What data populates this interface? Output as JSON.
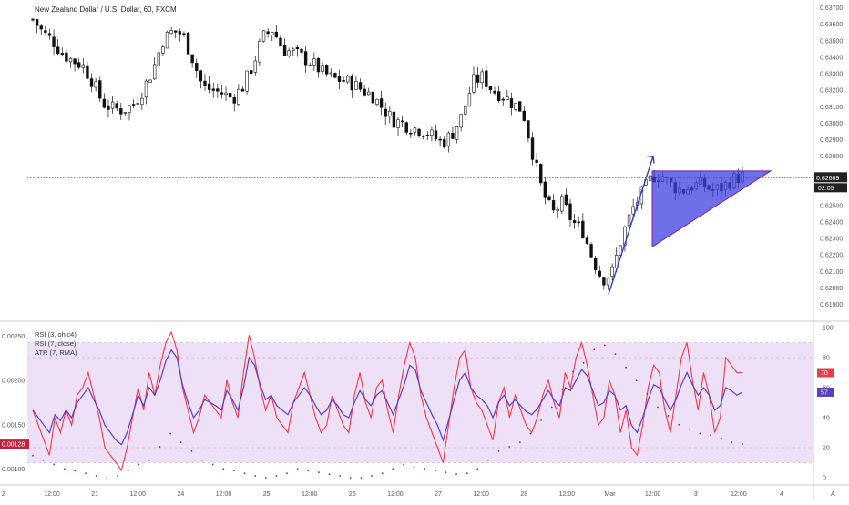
{
  "chart_data": {
    "type": "candlestick",
    "title": "New Zealand Dollar / U.S. Dollar, 60, FXCM",
    "price_axis": {
      "ticks": [
        "0.63700",
        "0.63600",
        "0.63500",
        "0.63400",
        "0.63300",
        "0.63200",
        "0.63100",
        "0.63000",
        "0.62900",
        "0.62800",
        "0.62600",
        "0.62500",
        "0.62400",
        "0.62300",
        "0.62200",
        "0.62100",
        "0.62000",
        "0.61900"
      ],
      "range": [
        0.6185,
        0.6375
      ]
    },
    "last_price": "0.62669",
    "countdown": "02:05",
    "time_axis": {
      "labels": [
        "12:00",
        "21",
        "12:00",
        "24",
        "12:00",
        "25",
        "12:00",
        "26",
        "12:00",
        "27",
        "12:00",
        "28",
        "12:00",
        "Mar",
        "12:00",
        "3",
        "12:00",
        "4"
      ],
      "left_marker": "Z",
      "right_marker": "A"
    },
    "price_series": [
      0.6363,
      0.6355,
      0.635,
      0.6342,
      0.6338,
      0.6335,
      0.6325,
      0.6312,
      0.6309,
      0.6308,
      0.6311,
      0.632,
      0.6332,
      0.635,
      0.6356,
      0.6354,
      0.6339,
      0.6322,
      0.632,
      0.6318,
      0.6315,
      0.6322,
      0.6335,
      0.6352,
      0.6357,
      0.6345,
      0.6343,
      0.634,
      0.6336,
      0.6331,
      0.6327,
      0.6326,
      0.6324,
      0.632,
      0.6317,
      0.6309,
      0.6302,
      0.63,
      0.6297,
      0.6296,
      0.6292,
      0.6288,
      0.6294,
      0.6305,
      0.6325,
      0.6328,
      0.632,
      0.6317,
      0.6312,
      0.6308,
      0.6282,
      0.6258,
      0.6245,
      0.6252,
      0.624,
      0.6235,
      0.6218,
      0.6205,
      0.621,
      0.6232,
      0.6248,
      0.6258,
      0.6268,
      0.6268,
      0.6262,
      0.6259,
      0.6262,
      0.6263,
      0.6259,
      0.6261,
      0.6266,
      0.6268
    ],
    "annotations": {
      "arrow": {
        "from": [
          0.6196
        ],
        "to": [
          0.628
        ]
      },
      "triangle": {
        "top": 0.6271,
        "bottom": 0.6225,
        "fill": "#3f3fe0",
        "stroke": "#7a1fa2"
      }
    },
    "rsi_panel": {
      "legend": [
        "RSI (3, ohlc4)",
        "RSI (7, close)",
        "ATR (7, RMA)"
      ],
      "rsi_axis_ticks": [
        "100",
        "80",
        "60",
        "40",
        "20",
        "0"
      ],
      "atr_axis_ticks": [
        "0.00250",
        "0.00200",
        "0.00150",
        "0.00100"
      ],
      "overbought": 90,
      "oversold": 10,
      "rsi3_last": "70",
      "rsi7_last": "57",
      "atr_last": "0.00128",
      "rsi3": [
        45,
        35,
        25,
        15,
        40,
        30,
        45,
        35,
        55,
        60,
        70,
        55,
        40,
        20,
        15,
        10,
        5,
        20,
        40,
        60,
        45,
        70,
        55,
        75,
        90,
        97,
        85,
        60,
        45,
        30,
        40,
        55,
        50,
        45,
        40,
        65,
        50,
        40,
        70,
        95,
        80,
        60,
        45,
        55,
        40,
        35,
        30,
        50,
        60,
        70,
        55,
        40,
        30,
        35,
        55,
        45,
        35,
        30,
        55,
        70,
        50,
        40,
        60,
        65,
        45,
        30,
        55,
        75,
        90,
        80,
        55,
        40,
        30,
        20,
        10,
        35,
        60,
        80,
        85,
        60,
        50,
        45,
        35,
        25,
        50,
        60,
        40,
        55,
        45,
        35,
        30,
        40,
        55,
        65,
        50,
        40,
        70,
        60,
        80,
        90,
        75,
        55,
        35,
        40,
        65,
        55,
        30,
        45,
        20,
        15,
        35,
        60,
        75,
        70,
        45,
        30,
        55,
        80,
        90,
        65,
        45,
        70,
        55,
        30,
        40,
        80,
        75,
        70,
        70
      ],
      "rsi7": [
        45,
        40,
        35,
        30,
        42,
        38,
        45,
        40,
        50,
        55,
        60,
        52,
        45,
        35,
        30,
        25,
        22,
        30,
        42,
        55,
        48,
        60,
        55,
        65,
        78,
        85,
        80,
        62,
        50,
        40,
        45,
        52,
        50,
        48,
        45,
        58,
        52,
        45,
        60,
        80,
        75,
        62,
        52,
        55,
        48,
        45,
        42,
        50,
        55,
        60,
        55,
        48,
        42,
        45,
        52,
        48,
        42,
        40,
        50,
        58,
        52,
        48,
        55,
        58,
        50,
        42,
        52,
        62,
        75,
        72,
        58,
        50,
        42,
        35,
        25,
        38,
        52,
        65,
        70,
        60,
        55,
        52,
        48,
        40,
        50,
        55,
        48,
        52,
        48,
        44,
        42,
        46,
        52,
        58,
        52,
        48,
        60,
        58,
        65,
        72,
        68,
        58,
        48,
        50,
        58,
        55,
        45,
        48,
        35,
        30,
        40,
        52,
        62,
        60,
        52,
        45,
        52,
        62,
        70,
        62,
        55,
        60,
        55,
        45,
        48,
        60,
        58,
        55,
        57
      ],
      "atr": [
        0.00115,
        0.0011,
        0.00105,
        0.001,
        0.00098,
        0.00095,
        0.00092,
        0.0009,
        0.00092,
        0.00098,
        0.00105,
        0.0011,
        0.00125,
        0.0014,
        0.0013,
        0.0012,
        0.0011,
        0.00105,
        0.001,
        0.00098,
        0.00095,
        0.00092,
        0.0009,
        0.00092,
        0.00095,
        0.001,
        0.00098,
        0.00096,
        0.00094,
        0.00092,
        0.0009,
        0.0009,
        0.00092,
        0.00095,
        0.001,
        0.00105,
        0.00102,
        0.001,
        0.00098,
        0.00096,
        0.00094,
        0.00095,
        0.001,
        0.0011,
        0.0012,
        0.00125,
        0.0013,
        0.0014,
        0.00155,
        0.0017,
        0.0019,
        0.0021,
        0.0022,
        0.00235,
        0.0024,
        0.0023,
        0.00215,
        0.002,
        0.00185,
        0.0017,
        0.0016,
        0.0015,
        0.00145,
        0.0014,
        0.00138,
        0.00135,
        0.0013,
        0.00128
      ]
    }
  }
}
